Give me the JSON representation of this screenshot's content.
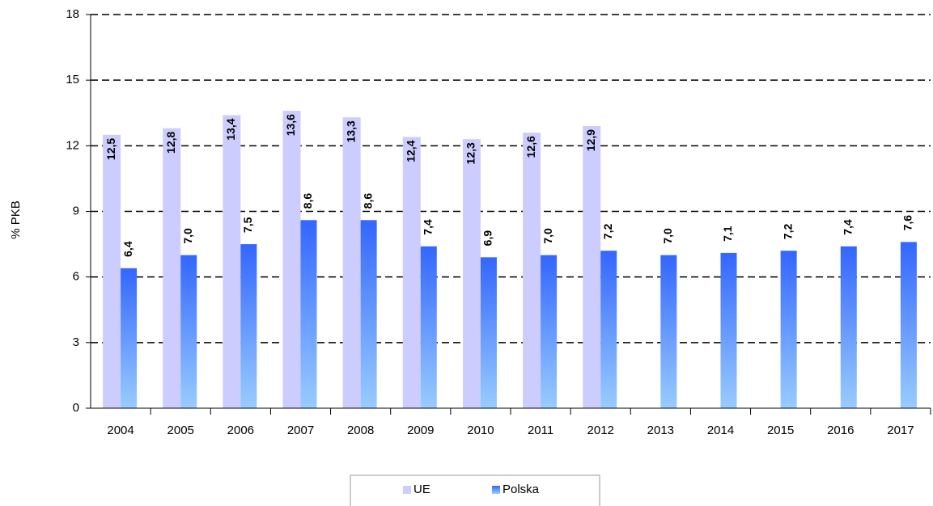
{
  "chart_data": {
    "type": "bar",
    "y_label": "% PKB",
    "categories": [
      "2004",
      "2005",
      "2006",
      "2007",
      "2008",
      "2009",
      "2010",
      "2011",
      "2012",
      "2013",
      "2014",
      "2015",
      "2016",
      "2017"
    ],
    "series": [
      {
        "name": "UE",
        "color": "#ccccff",
        "values": [
          12.5,
          12.8,
          13.4,
          13.6,
          13.3,
          12.4,
          12.3,
          12.6,
          12.9,
          null,
          null,
          null,
          null,
          null
        ],
        "value_labels": [
          "12,5",
          "12,8",
          "13,4",
          "13,6",
          "13,3",
          "12,4",
          "12,3",
          "12,6",
          "12,9",
          null,
          null,
          null,
          null,
          null
        ]
      },
      {
        "name": "Polska",
        "color": "#3366ff",
        "values": [
          6.4,
          7.0,
          7.5,
          8.6,
          8.6,
          7.4,
          6.9,
          7.0,
          7.2,
          7.0,
          7.1,
          7.2,
          7.4,
          7.6
        ],
        "value_labels": [
          "6,4",
          "7,0",
          "7,5",
          "8,6",
          "8,6",
          "7,4",
          "6,9",
          "7,0",
          "7,2",
          "7,0",
          "7,1",
          "7,2",
          "7,4",
          "7,6"
        ]
      }
    ],
    "ylim": [
      0,
      18
    ],
    "yticks": [
      0,
      3,
      6,
      9,
      12,
      15,
      18
    ],
    "grid": true,
    "legend": "bottom"
  }
}
